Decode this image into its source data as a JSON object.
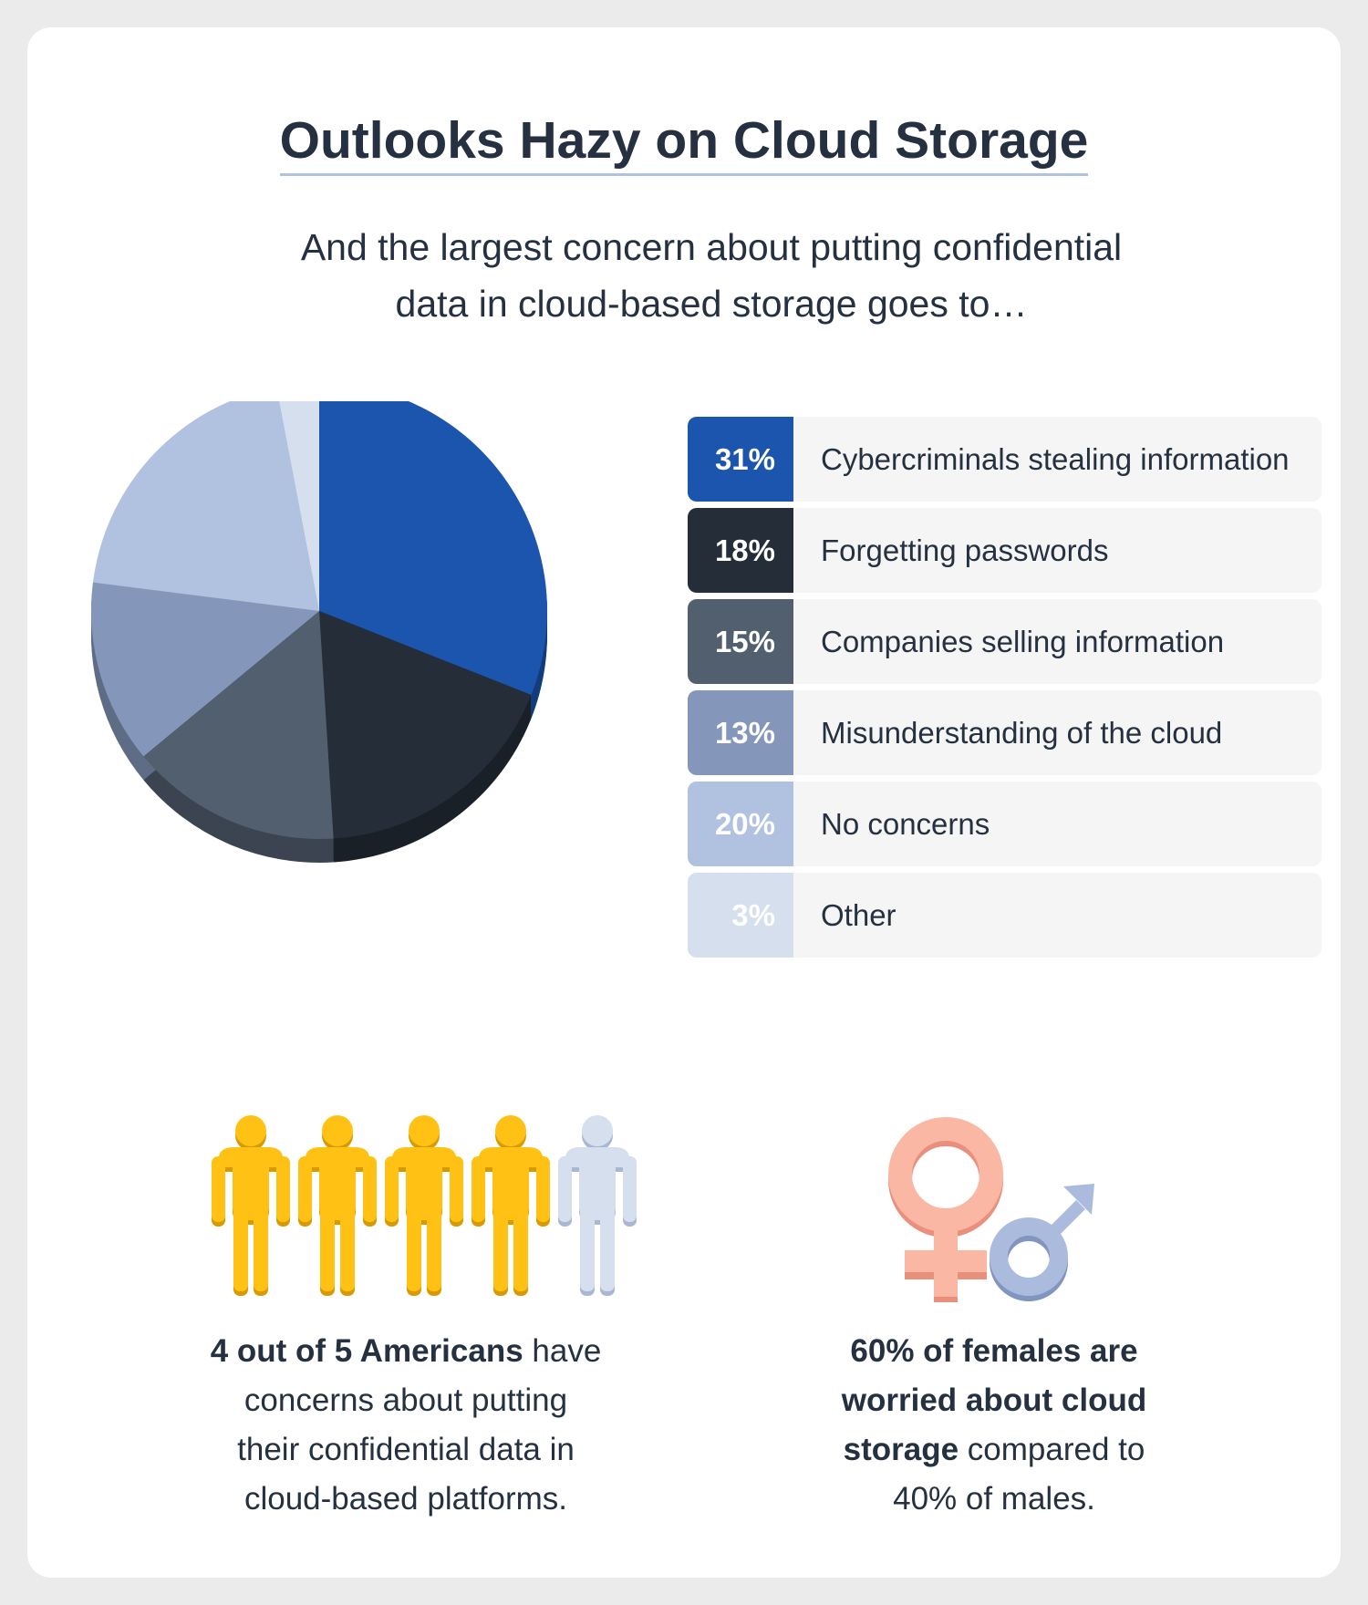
{
  "title": "Outlooks Hazy on Cloud Storage",
  "subtitle_line1": "And the largest concern about putting confidential",
  "subtitle_line2": "data in cloud-based storage goes to…",
  "chart_data": {
    "type": "pie",
    "title": "Outlooks Hazy on Cloud Storage",
    "slices": [
      {
        "label": "Cybercriminals stealing information",
        "value": 31,
        "display": "31%",
        "color": "#1b55ad",
        "text_color": "#ffffff"
      },
      {
        "label": "Forgetting passwords",
        "value": 18,
        "display": "18%",
        "color": "#242d38",
        "text_color": "#ffffff"
      },
      {
        "label": "Companies selling information",
        "value": 15,
        "display": "15%",
        "color": "#525f6f",
        "text_color": "#ffffff"
      },
      {
        "label": "Misunderstanding of the cloud",
        "value": 13,
        "display": "13%",
        "color": "#8496ba",
        "text_color": "#ffffff"
      },
      {
        "label": "No concerns",
        "value": 20,
        "display": "20%",
        "color": "#b0c2e0",
        "text_color": "#ffffff"
      },
      {
        "label": "Other",
        "value": 3,
        "display": "3%",
        "color": "#d6dfee",
        "text_color": "#ffffff"
      }
    ],
    "start_angle": "12 o'clock",
    "direction": "clockwise",
    "legend_position": "right"
  },
  "people_stat": {
    "bold": "4 out of 5 Americans",
    "rest_line1": " have",
    "line2": "concerns about putting",
    "line3": "their confidential data in",
    "line4": "cloud-based platforms.",
    "concerned_count": 4,
    "total_count": 5,
    "concerned_color": "#ffc114",
    "other_color": "#d6dfee"
  },
  "gender_stat": {
    "bold_line1": "60% of females are",
    "bold_line2": "worried about cloud",
    "bold_line3": "storage",
    "rest_line3": " compared to",
    "line4": "40% of males.",
    "female_color": "#f9b7a4",
    "male_color": "#aabbde"
  }
}
